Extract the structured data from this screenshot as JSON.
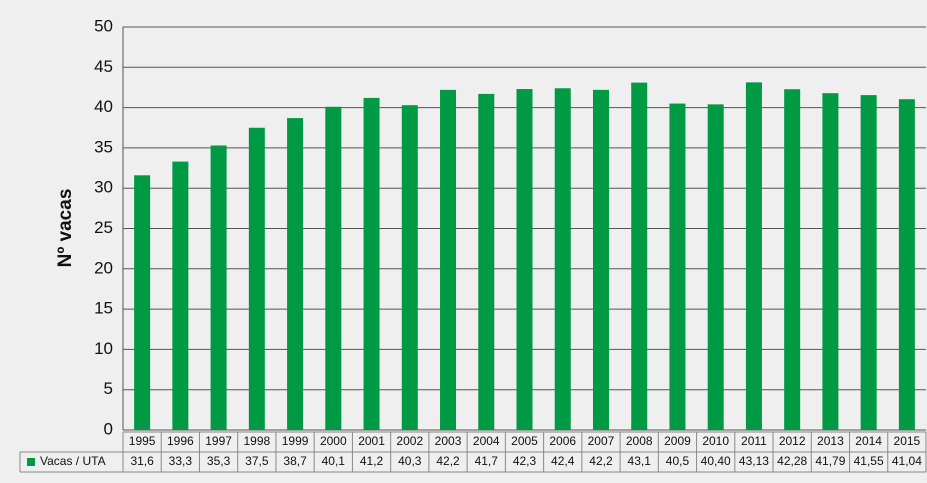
{
  "chart_data": {
    "type": "bar",
    "y_label": "Nº vacas",
    "categories": [
      "1995",
      "1996",
      "1997",
      "1998",
      "1999",
      "2000",
      "2001",
      "2002",
      "2003",
      "2004",
      "2005",
      "2006",
      "2007",
      "2008",
      "2009",
      "2010",
      "2011",
      "2012",
      "2013",
      "2014",
      "2015"
    ],
    "series": [
      {
        "name": "Vacas / UTA",
        "color": "#009a44",
        "values": [
          31.6,
          33.3,
          35.3,
          37.5,
          38.7,
          40.1,
          41.2,
          40.3,
          42.2,
          41.7,
          42.3,
          42.4,
          42.2,
          43.1,
          40.5,
          40.4,
          43.13,
          42.28,
          41.79,
          41.55,
          41.04
        ],
        "value_labels": [
          "31,6",
          "33,3",
          "35,3",
          "37,5",
          "38,7",
          "40,1",
          "41,2",
          "40,3",
          "42,2",
          "41,7",
          "42,3",
          "42,4",
          "42,2",
          "43,1",
          "40,5",
          "40,40",
          "43,13",
          "42,28",
          "41,79",
          "41,55",
          "41,04"
        ]
      }
    ],
    "ylim": [
      0,
      50
    ],
    "yticks": [
      0,
      5,
      10,
      15,
      20,
      25,
      30,
      35,
      40,
      45,
      50
    ],
    "grid": true
  }
}
